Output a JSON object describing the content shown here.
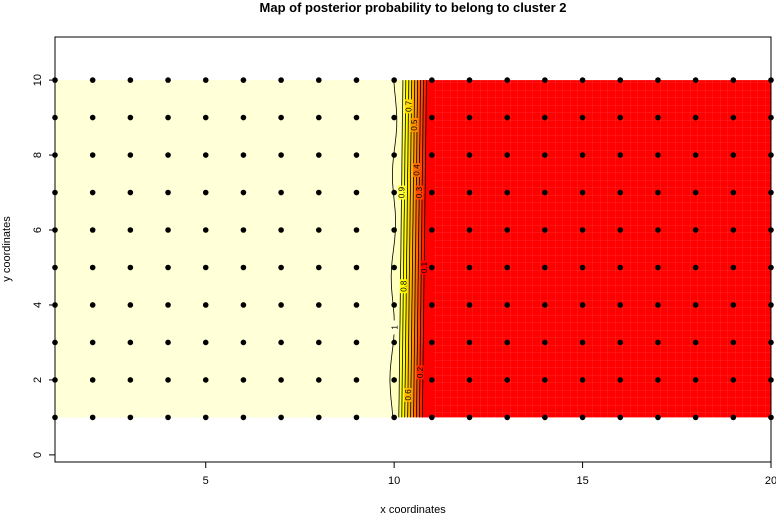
{
  "chart_data": {
    "type": "heatmap",
    "title": "Map of posterior probability to belong to cluster  2",
    "xlabel": "x coordinates",
    "ylabel": "y coordinates",
    "xlim": [
      1,
      20
    ],
    "ylim": [
      -0.19,
      11.15
    ],
    "x_ticks": [
      5,
      10,
      15,
      20
    ],
    "y_ticks": [
      0,
      2,
      4,
      6,
      8,
      10
    ],
    "grid_x": [
      1,
      2,
      3,
      4,
      5,
      6,
      7,
      8,
      9,
      10,
      11,
      12,
      13,
      14,
      15,
      16,
      17,
      18,
      19,
      20
    ],
    "grid_y": [
      1,
      2,
      3,
      4,
      5,
      6,
      7,
      8,
      9,
      10
    ],
    "posterior": {
      "x_le_10": 1.0,
      "x_ge_11": 0.0
    },
    "contour_levels": [
      0.1,
      0.2,
      0.3,
      0.4,
      0.5,
      0.6,
      0.7,
      0.8,
      0.9,
      1
    ],
    "contour_labels": [
      {
        "text": "0.7",
        "level": 0.7,
        "y": 9.3
      },
      {
        "text": "0.5",
        "level": 0.5,
        "y": 8.8
      },
      {
        "text": "0.4",
        "level": 0.4,
        "y": 7.6
      },
      {
        "text": "0.3",
        "level": 0.3,
        "y": 7.0
      },
      {
        "text": "0.9",
        "level": 0.9,
        "y": 7.0
      },
      {
        "text": "0.1",
        "level": 0.1,
        "y": 5.0
      },
      {
        "text": "0.8",
        "level": 0.8,
        "y": 4.5
      },
      {
        "text": "1",
        "level": 1.0,
        "y": 3.4
      },
      {
        "text": "0.2",
        "level": 0.2,
        "y": 2.2
      },
      {
        "text": "0.6",
        "level": 0.6,
        "y": 1.6
      }
    ],
    "colors": {
      "high": "#FFFFD8",
      "low": "#FF0000",
      "bands": [
        "#FF0000",
        "#FF2400",
        "#FF4900",
        "#FF6D00",
        "#FF9200",
        "#FFB600",
        "#FFDB00",
        "#FFFF00",
        "#FFFF40",
        "#FFFFBF"
      ],
      "points": "#000000"
    }
  }
}
